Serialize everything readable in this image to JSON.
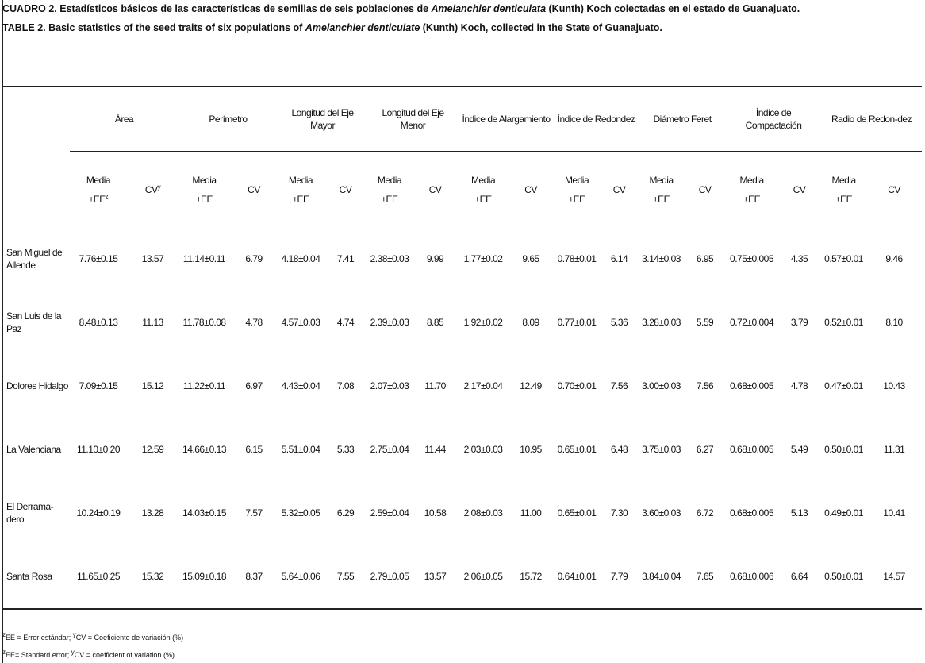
{
  "caption_es": {
    "label": "CUADRO 2.",
    "before": " Estadísticos básicos de las características de semillas de seis poblaciones de ",
    "species": "Amelanchier denticulata",
    "after": " (Kunth) Koch colectadas en el estado de Guanajuato."
  },
  "caption_en": {
    "label": "TABLE 2.",
    "before": " Basic statistics of the seed traits of six populations of ",
    "species": "Amelanchier denticulate",
    "after": " (Kunth) Koch, collected in the State of Guanajuato."
  },
  "table": {
    "groups": [
      {
        "name": "Área",
        "mean": "Media",
        "se": "±EE",
        "se_sup": "z",
        "cv": "CV",
        "cv_sup": "y"
      },
      {
        "name": "Perímetro",
        "mean": "Media",
        "se": "±EE",
        "cv": "CV"
      },
      {
        "name": "Longitud del Eje Mayor",
        "mean": "Media",
        "se": "±EE",
        "cv": "CV"
      },
      {
        "name": "Longitud del Eje Menor",
        "mean": "Media",
        "se": "±EE",
        "cv": "CV"
      },
      {
        "name": "Índice de Alargamiento",
        "mean": "Media",
        "se": "±EE",
        "cv": "CV"
      },
      {
        "name": "Índice de Redondez",
        "mean": "Media",
        "se": "±EE",
        "cv": "CV"
      },
      {
        "name": "Diámetro Feret",
        "mean": "Media",
        "se": "±EE",
        "cv": "CV"
      },
      {
        "name": "Índice de Compactación",
        "mean": "Media",
        "se": "±EE",
        "cv": "CV"
      },
      {
        "name": "Radio de Redon-dez",
        "mean": "Media",
        "se": "±EE",
        "cv": "CV"
      }
    ],
    "rows": [
      {
        "population": "San Miguel de Allende",
        "cells": [
          "7.76±0.15",
          "13.57",
          "11.14±0.11",
          "6.79",
          "4.18±0.04",
          "7.41",
          "2.38±0.03",
          "9.99",
          "1.77±0.02",
          "9.65",
          "0.78±0.01",
          "6.14",
          "3.14±0.03",
          "6.95",
          "0.75±0.005",
          "4.35",
          "0.57±0.01",
          "9.46"
        ]
      },
      {
        "population": "San Luis de la Paz",
        "cells": [
          "8.48±0.13",
          "11.13",
          "11.78±0.08",
          "4.78",
          "4.57±0.03",
          "4.74",
          "2.39±0.03",
          "8.85",
          "1.92±0.02",
          "8.09",
          "0.77±0.01",
          "5.36",
          "3.28±0.03",
          "5.59",
          "0.72±0.004",
          "3.79",
          "0.52±0.01",
          "8.10"
        ]
      },
      {
        "population": "Dolores Hidalgo",
        "cells": [
          "7.09±0.15",
          "15.12",
          "11.22±0.11",
          "6.97",
          "4.43±0.04",
          "7.08",
          "2.07±0.03",
          "11.70",
          "2.17±0.04",
          "12.49",
          "0.70±0.01",
          "7.56",
          "3.00±0.03",
          "7.56",
          "0.68±0.005",
          "4.78",
          "0.47±0.01",
          "10.43"
        ]
      },
      {
        "population": "La Valenciana",
        "cells": [
          "11.10±0.20",
          "12.59",
          "14.66±0.13",
          "6.15",
          "5.51±0.04",
          "5.33",
          "2.75±0.04",
          "11.44",
          "2.03±0.03",
          "10.95",
          "0.65±0.01",
          "6.48",
          "3.75±0.03",
          "6.27",
          "0.68±0.005",
          "5.49",
          "0.50±0.01",
          "11.31"
        ]
      },
      {
        "population": "El Derrama-dero",
        "cells": [
          "10.24±0.19",
          "13.28",
          "14.03±0.15",
          "7.57",
          "5.32±0.05",
          "6.29",
          "2.59±0.04",
          "10.58",
          "2.08±0.03",
          "11.00",
          "0.65±0.01",
          "7.30",
          "3.60±0.03",
          "6.72",
          "0.68±0.005",
          "5.13",
          "0.49±0.01",
          "10.41"
        ]
      },
      {
        "population": "Santa Rosa",
        "cells": [
          "11.65±0.25",
          "15.32",
          "15.09±0.18",
          "8.37",
          "5.64±0.06",
          "7.55",
          "2.79±0.05",
          "13.57",
          "2.06±0.05",
          "15.72",
          "0.64±0.01",
          "7.79",
          "3.84±0.04",
          "7.65",
          "0.68±0.006",
          "6.64",
          "0.50±0.01",
          "14.57"
        ]
      }
    ]
  },
  "notes": [
    [
      "z",
      "EE = Error estándar; ",
      "y",
      "CV = Coeficiente de variación (%)"
    ],
    [
      "z",
      "EE= Standard error; ",
      "y",
      "CV = coefficient of variation (%)"
    ]
  ]
}
